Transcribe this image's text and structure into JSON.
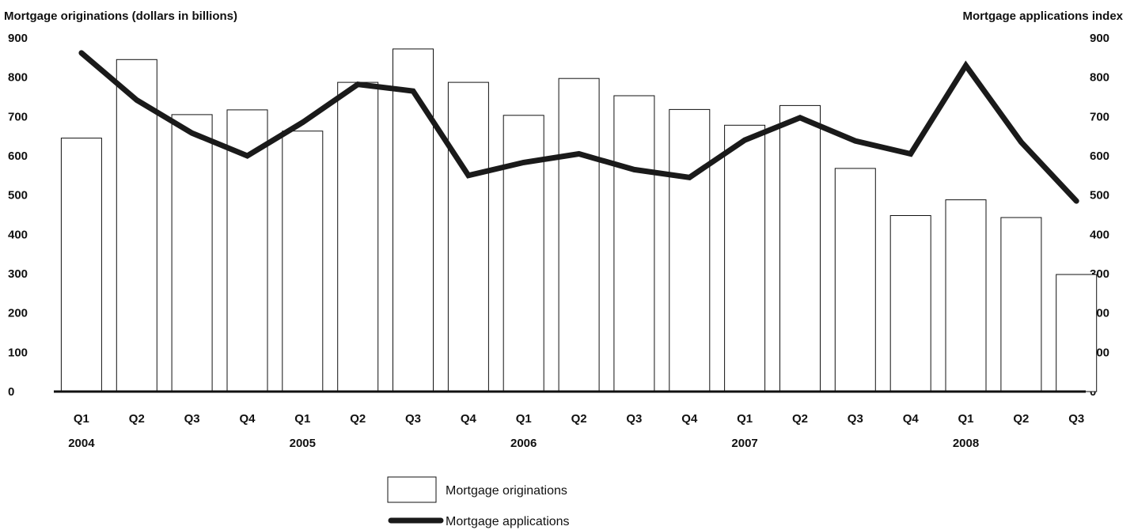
{
  "chart_data": {
    "type": "bar",
    "left_axis_title": "Mortgage originations (dollars in billions)",
    "right_axis_title": "Mortgage applications index",
    "ylim_left": [
      0,
      900
    ],
    "ylim_right": [
      0,
      900
    ],
    "yticks": [
      "900",
      "800",
      "700",
      "600",
      "500",
      "400",
      "300",
      "200",
      "100",
      "0"
    ],
    "categories": [
      "Q1",
      "Q2",
      "Q3",
      "Q4",
      "Q1",
      "Q2",
      "Q3",
      "Q4",
      "Q1",
      "Q2",
      "Q3",
      "Q4",
      "Q1",
      "Q2",
      "Q3",
      "Q4",
      "Q1",
      "Q2",
      "Q3"
    ],
    "years": [
      {
        "label": "2004",
        "index": 0
      },
      {
        "label": "2005",
        "index": 4
      },
      {
        "label": "2006",
        "index": 8
      },
      {
        "label": "2007",
        "index": 12
      },
      {
        "label": "2008",
        "index": 16
      }
    ],
    "series": [
      {
        "name": "Mortgage originations",
        "kind": "bar",
        "axis": "left",
        "values": [
          645,
          845,
          705,
          717,
          663,
          787,
          872,
          787,
          703,
          797,
          753,
          718,
          678,
          728,
          568,
          448,
          488,
          443,
          298
        ]
      },
      {
        "name": "Mortgage applications",
        "kind": "line",
        "axis": "right",
        "values": [
          862,
          742,
          658,
          600,
          685,
          782,
          765,
          550,
          583,
          605,
          565,
          545,
          640,
          697,
          638,
          605,
          830,
          635,
          485
        ]
      }
    ],
    "legend_position": "bottom-center",
    "grid": false
  }
}
